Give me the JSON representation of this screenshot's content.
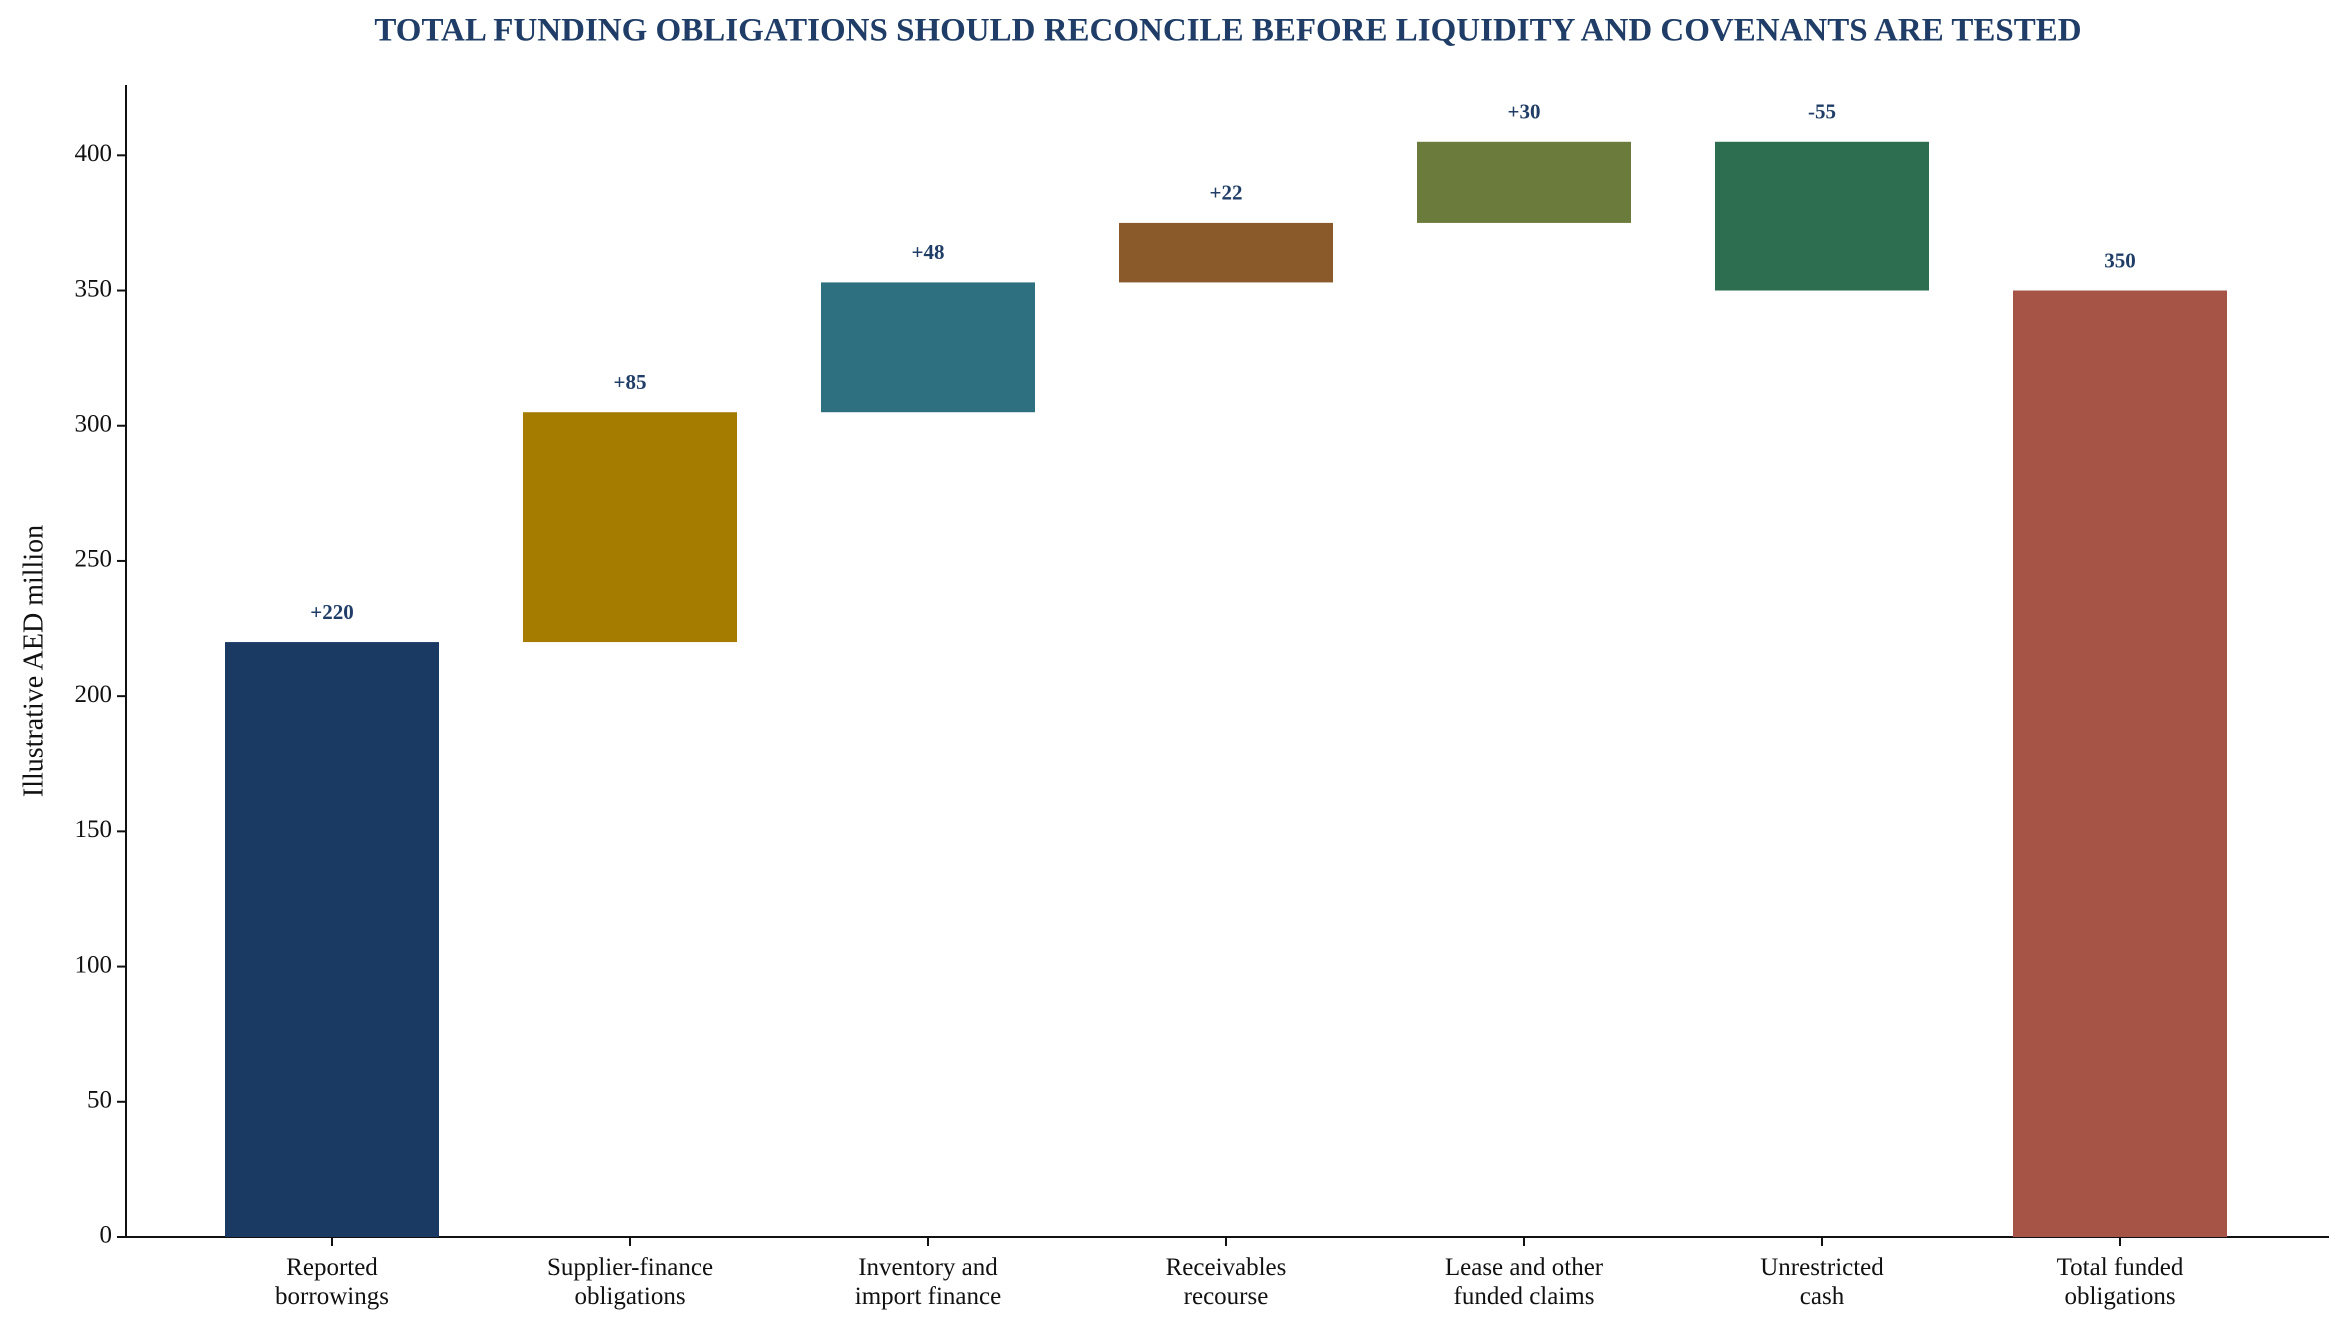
{
  "chart_data": {
    "type": "waterfall",
    "title": "TOTAL FUNDING OBLIGATIONS SHOULD RECONCILE BEFORE LIQUIDITY AND COVENANTS ARE TESTED",
    "y_label": "Illustrative AED million",
    "categories": [
      "Reported\nborrowings",
      "Supplier-finance\nobligations",
      "Inventory and\nimport finance",
      "Receivables\nrecourse",
      "Lease and other\nfunded claims",
      "Unrestricted\ncash",
      "Total funded\nobligations"
    ],
    "values": [
      220,
      85,
      48,
      22,
      30,
      -55,
      350
    ],
    "value_labels": [
      "+220",
      "+85",
      "+48",
      "+22",
      "+30",
      "-55",
      "350"
    ],
    "is_total": [
      false,
      false,
      false,
      false,
      false,
      false,
      true
    ],
    "colors": [
      "#1a3a63",
      "#a67c00",
      "#2e7080",
      "#8b5a2b",
      "#6b7b3c",
      "#2e6e50",
      "#a65446"
    ],
    "ylim": [
      0,
      426
    ],
    "yticks": [
      0,
      50,
      100,
      150,
      200,
      250,
      300,
      350,
      400
    ],
    "grid": false
  }
}
